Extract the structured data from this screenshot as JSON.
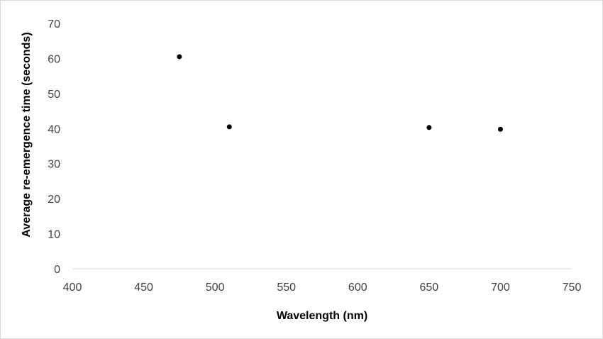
{
  "chart_data": {
    "type": "scatter",
    "title": "",
    "xlabel": "Wavelength (nm)",
    "ylabel": "Average re-emergence time (seconds)",
    "xlim": [
      400,
      750
    ],
    "ylim": [
      0,
      70
    ],
    "xticks": [
      400,
      450,
      500,
      550,
      600,
      650,
      700,
      750
    ],
    "yticks": [
      0,
      10,
      20,
      30,
      40,
      50,
      60,
      70
    ],
    "grid": false,
    "legend": "none",
    "series": [
      {
        "color": "#000000",
        "points": [
          {
            "x": 475,
            "y": 60.5
          },
          {
            "x": 510,
            "y": 40.5
          },
          {
            "x": 650,
            "y": 40.3
          },
          {
            "x": 700,
            "y": 39.8
          }
        ]
      }
    ]
  }
}
